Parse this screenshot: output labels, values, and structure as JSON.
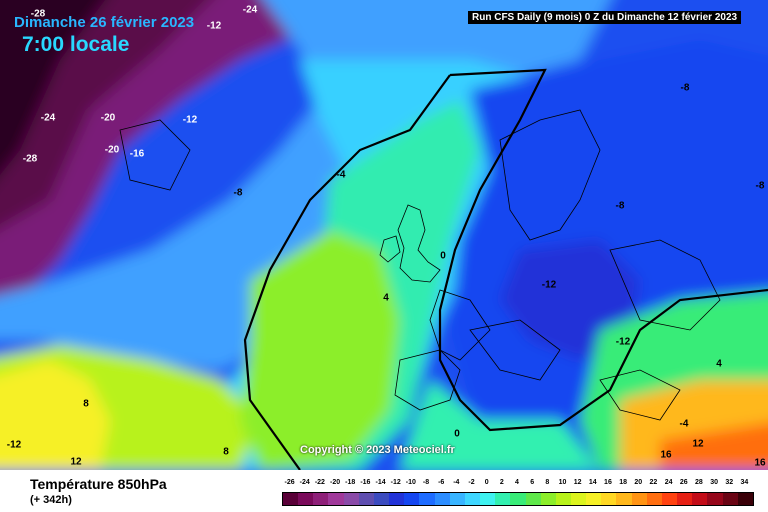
{
  "header": {
    "date": "Dimanche 26 février 2023",
    "time": "7:00 locale",
    "run": "Run CFS Daily (9 mois) 0 Z du Dimanche 12 février 2023"
  },
  "copyright": "Copyright © 2023 Meteociel.fr",
  "footer": {
    "parameter": "Température 850hPa",
    "lead_time": "(+ 342h)"
  },
  "isotherm_labels": [
    {
      "text": "-28"
    },
    {
      "text": "-24"
    },
    {
      "text": "-12"
    },
    {
      "text": "-24"
    },
    {
      "text": "-20"
    },
    {
      "text": "-20"
    },
    {
      "text": "-16"
    },
    {
      "text": "-12"
    },
    {
      "text": "-28"
    },
    {
      "text": "-8"
    },
    {
      "text": "-4"
    },
    {
      "text": "-8"
    },
    {
      "text": "-8"
    },
    {
      "text": "-8"
    },
    {
      "text": "0"
    },
    {
      "text": "4"
    },
    {
      "text": "-12"
    },
    {
      "text": "-12"
    },
    {
      "text": "4"
    },
    {
      "text": "8"
    },
    {
      "text": "-12"
    },
    {
      "text": "12"
    },
    {
      "text": "8"
    },
    {
      "text": "0"
    },
    {
      "text": "12"
    },
    {
      "text": "-4"
    },
    {
      "text": "16"
    },
    {
      "text": "16"
    }
  ],
  "legend": {
    "labels": [
      "-26",
      "-24",
      "-22",
      "-20",
      "-18",
      "-16",
      "-14",
      "-12",
      "-10",
      "-8",
      "-6",
      "-4",
      "-2",
      "0",
      "2",
      "4",
      "6",
      "8",
      "10",
      "12",
      "14",
      "16",
      "18",
      "20",
      "22",
      "24",
      "26",
      "28",
      "30",
      "32",
      "34"
    ],
    "colors": [
      "#5a0038",
      "#7a0a5a",
      "#8e1f78",
      "#a0389a",
      "#8a4aa8",
      "#5f4eb0",
      "#3b4bbf",
      "#2233d8",
      "#1546f0",
      "#1e6cff",
      "#2c8dff",
      "#38b4ff",
      "#3fd6ff",
      "#3ff2f0",
      "#33f0b0",
      "#39ec78",
      "#5fe84a",
      "#8cee2a",
      "#b8f21a",
      "#dcf41e",
      "#f6f026",
      "#ffd824",
      "#ffb81c",
      "#ff9414",
      "#ff6e10",
      "#ff4210",
      "#e62014",
      "#c30c18",
      "#96061a",
      "#6a0414",
      "#3a0008"
    ]
  }
}
